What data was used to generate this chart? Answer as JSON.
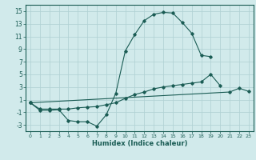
{
  "xlabel": "Humidex (Indice chaleur)",
  "x": [
    0,
    1,
    2,
    3,
    4,
    5,
    6,
    7,
    8,
    9,
    10,
    11,
    12,
    13,
    14,
    15,
    16,
    17,
    18,
    19,
    20,
    21,
    22,
    23
  ],
  "line1": [
    0.5,
    -0.7,
    -0.7,
    -0.6,
    -2.3,
    -2.5,
    -2.5,
    -3.2,
    -1.4,
    2.0,
    8.7,
    11.3,
    13.5,
    14.5,
    14.8,
    14.7,
    13.2,
    11.5,
    8.0,
    7.8,
    null,
    null,
    null,
    null
  ],
  "line2": [
    0.5,
    -0.5,
    -0.5,
    -0.5,
    -0.5,
    -0.3,
    -0.2,
    -0.1,
    0.2,
    0.5,
    1.2,
    1.8,
    2.2,
    2.7,
    3.0,
    3.2,
    3.4,
    3.6,
    3.8,
    5.0,
    3.2,
    null,
    null,
    null
  ],
  "line3_x": [
    0,
    21,
    22,
    23
  ],
  "line3_y": [
    0.5,
    2.2,
    2.8,
    2.3
  ],
  "line_color": "#1a5c54",
  "bg_color": "#d1eaeb",
  "grid_color": "#aed0d2",
  "ylim": [
    -4,
    16
  ],
  "xlim": [
    -0.5,
    23.5
  ],
  "yticks": [
    -3,
    -1,
    1,
    3,
    5,
    7,
    9,
    11,
    13,
    15
  ],
  "xticks": [
    0,
    1,
    2,
    3,
    4,
    5,
    6,
    7,
    8,
    9,
    10,
    11,
    12,
    13,
    14,
    15,
    16,
    17,
    18,
    19,
    20,
    21,
    22,
    23
  ]
}
